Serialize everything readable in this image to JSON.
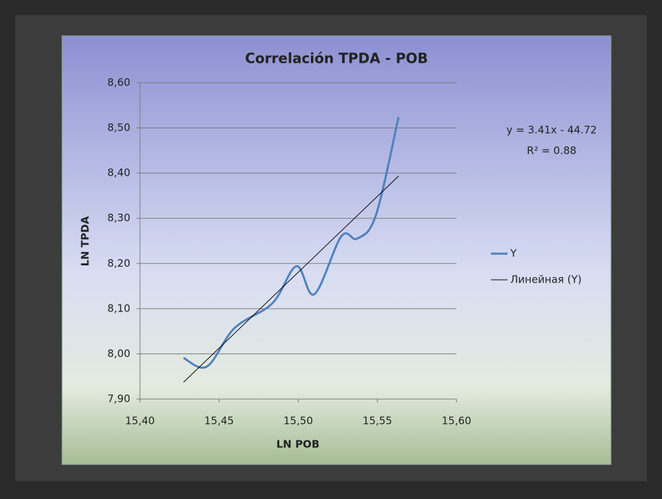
{
  "chart_data": {
    "type": "line",
    "title": "Correlación TPDA - POB",
    "x_label": "LN POB",
    "y_label": "LN TPDA",
    "x": [
      15.4275,
      15.4423,
      15.4597,
      15.4837,
      15.4989,
      15.5102,
      15.5272,
      15.5372,
      15.549,
      15.5634
    ],
    "series": [
      {
        "name": "Y",
        "color": "#4f81bd",
        "values": [
          7.991,
          7.972,
          8.057,
          8.112,
          8.194,
          8.132,
          8.26,
          8.255,
          8.306,
          8.524
        ]
      }
    ],
    "trendline": {
      "name": "Линейная (Y)",
      "color": "#000000",
      "equation": "y = 3.41x - 44.72",
      "r_squared": "R² = 0.88"
    },
    "xlim": [
      15.4,
      15.6
    ],
    "xticks": [
      {
        "value": 15.4,
        "label": "15,40"
      },
      {
        "value": 15.45,
        "label": "15,45"
      },
      {
        "value": 15.5,
        "label": "15,50"
      },
      {
        "value": 15.55,
        "label": "15,55"
      },
      {
        "value": 15.6,
        "label": "15,60"
      }
    ],
    "ylim": [
      7.9,
      8.6
    ],
    "yticks": [
      {
        "value": 7.9,
        "label": "7,90"
      },
      {
        "value": 8.0,
        "label": "8,00"
      },
      {
        "value": 8.1,
        "label": "8,10"
      },
      {
        "value": 8.2,
        "label": "8,20"
      },
      {
        "value": 8.3,
        "label": "8,30"
      },
      {
        "value": 8.4,
        "label": "8,40"
      },
      {
        "value": 8.5,
        "label": "8,50"
      },
      {
        "value": 8.6,
        "label": "8,60"
      }
    ],
    "grid": true,
    "legend": "right"
  }
}
